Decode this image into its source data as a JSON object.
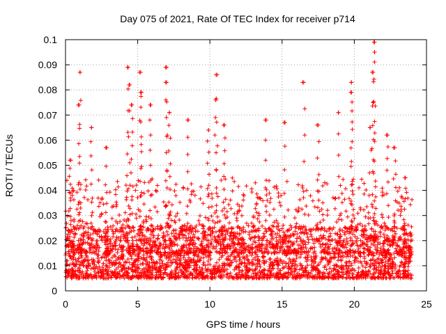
{
  "chart_data": {
    "type": "scatter",
    "title": "Day 075 of 2021, Rate Of TEC Index for receiver p714",
    "xlabel": "GPS time / hours",
    "ylabel": "ROTI / TECUs",
    "xlim": [
      0,
      25
    ],
    "ylim": [
      0,
      0.1
    ],
    "xticks": [
      0,
      5,
      10,
      15,
      20,
      25
    ],
    "yticks": [
      0,
      0.01,
      0.02,
      0.03,
      0.04,
      0.05,
      0.06,
      0.07,
      0.08,
      0.09,
      0.1
    ],
    "xtick_labels": [
      "0",
      "5",
      "10",
      "15",
      "20",
      "25"
    ],
    "ytick_labels": [
      "0",
      "0.01",
      "0.02",
      "0.03",
      "0.04",
      "0.05",
      "0.06",
      "0.07",
      "0.08",
      "0.09",
      "0.1"
    ],
    "grid": true,
    "marker": "+",
    "color": "#ff0000",
    "x_data_range": [
      0,
      24
    ],
    "typical_y_range": [
      0.005,
      0.02
    ],
    "spikes": [
      {
        "x": 0.3,
        "y": 0.052
      },
      {
        "x": 1.0,
        "y": 0.087
      },
      {
        "x": 0.95,
        "y": 0.074
      },
      {
        "x": 1.8,
        "y": 0.065
      },
      {
        "x": 2.8,
        "y": 0.057
      },
      {
        "x": 4.3,
        "y": 0.089
      },
      {
        "x": 4.4,
        "y": 0.082
      },
      {
        "x": 4.6,
        "y": 0.074
      },
      {
        "x": 5.2,
        "y": 0.087
      },
      {
        "x": 5.2,
        "y": 0.079
      },
      {
        "x": 5.9,
        "y": 0.074
      },
      {
        "x": 7.0,
        "y": 0.089
      },
      {
        "x": 7.0,
        "y": 0.083
      },
      {
        "x": 7.2,
        "y": 0.071
      },
      {
        "x": 8.5,
        "y": 0.068
      },
      {
        "x": 9.9,
        "y": 0.064
      },
      {
        "x": 10.5,
        "y": 0.086
      },
      {
        "x": 10.4,
        "y": 0.076
      },
      {
        "x": 11.0,
        "y": 0.066
      },
      {
        "x": 13.9,
        "y": 0.068
      },
      {
        "x": 15.2,
        "y": 0.067
      },
      {
        "x": 16.5,
        "y": 0.083
      },
      {
        "x": 17.5,
        "y": 0.066
      },
      {
        "x": 18.9,
        "y": 0.071
      },
      {
        "x": 19.8,
        "y": 0.083
      },
      {
        "x": 19.8,
        "y": 0.079
      },
      {
        "x": 21.4,
        "y": 0.099
      },
      {
        "x": 21.4,
        "y": 0.095
      },
      {
        "x": 21.3,
        "y": 0.087
      },
      {
        "x": 21.3,
        "y": 0.075
      },
      {
        "x": 21.1,
        "y": 0.065
      },
      {
        "x": 22.3,
        "y": 0.062
      },
      {
        "x": 22.8,
        "y": 0.057
      },
      {
        "x": 23.5,
        "y": 0.045
      }
    ]
  }
}
